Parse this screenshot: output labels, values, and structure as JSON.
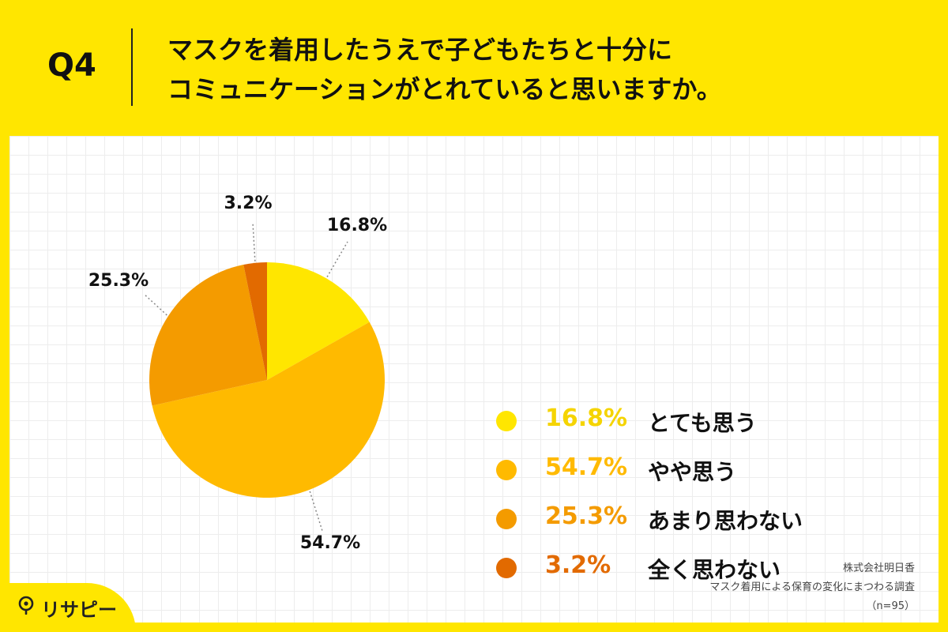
{
  "question": {
    "label": "Q4",
    "title_lines": [
      "マスクを着用したうえで子どもたちと十分に",
      "コミュニケーションがとれていると思いますか。"
    ]
  },
  "chart_data": {
    "type": "pie",
    "categories": [
      "とても思う",
      "やや思う",
      "あまり思わない",
      "全く思わない"
    ],
    "values": [
      16.8,
      54.7,
      25.3,
      3.2
    ],
    "value_labels": [
      "16.8%",
      "54.7%",
      "25.3%",
      "3.2%"
    ],
    "colors": [
      "#FFE600",
      "#FFBA00",
      "#F49B00",
      "#E26A00"
    ],
    "legend_pct_colors": [
      "#F5D400",
      "#FFBA00",
      "#F49B00",
      "#E26A00"
    ],
    "start_angle_deg": 0,
    "direction": "clockwise",
    "legend_placement": "right"
  },
  "source": {
    "company": "株式会社明日香",
    "survey": "マスク着用による保育の変化にまつわる調査",
    "sample": "（n=95）"
  },
  "logo": {
    "text": "リサピー",
    "icon": "magnifier-lightbulb-icon"
  }
}
